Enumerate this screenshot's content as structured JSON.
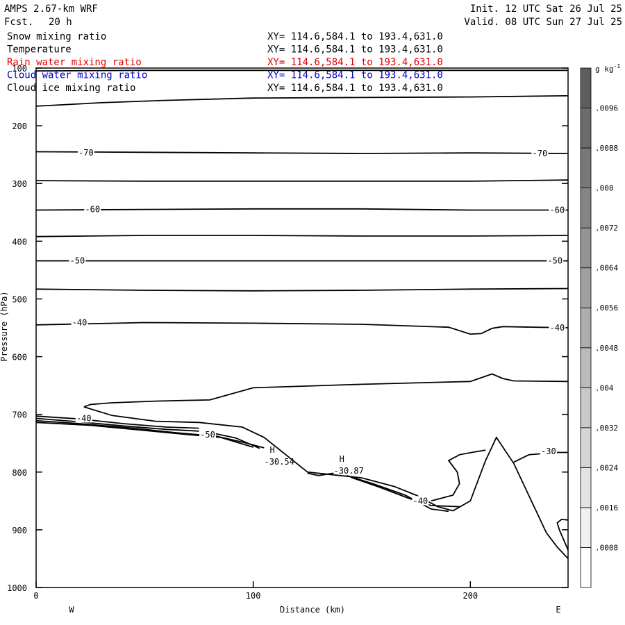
{
  "header": {
    "model": "AMPS 2.67-km WRF",
    "init": "Init. 12 UTC Sat 26 Jul 25",
    "fcst_label": "Fcst.",
    "fcst_value": "20 h",
    "valid": "Valid. 08 UTC Sun 27 Jul 25"
  },
  "fields": [
    {
      "name": "Snow mixing ratio",
      "xy": "XY= 114.6,584.1 to 193.4,631.0",
      "color": "#000000"
    },
    {
      "name": "Temperature",
      "xy": "XY= 114.6,584.1 to 193.4,631.0",
      "color": "#000000"
    },
    {
      "name": "Rain water mixing ratio",
      "xy": "XY= 114.6,584.1 to 193.4,631.0",
      "color": "#e00000"
    },
    {
      "name": "Cloud water mixing ratio",
      "xy": "XY= 114.6,584.1 to 193.4,631.0",
      "color": "#0000cc"
    },
    {
      "name": "Cloud ice mixing ratio",
      "xy": "XY= 114.6,584.1 to 193.4,631.0",
      "color": "#000000"
    }
  ],
  "chart_data": {
    "type": "line",
    "subtype": "vertical cross-section contour",
    "xlabel": "Distance (km)",
    "ylabel": "Pressure (hPa)",
    "xlim": [
      0,
      245
    ],
    "ylim": [
      1000,
      100
    ],
    "x_ticks": [
      0,
      100,
      200
    ],
    "y_ticks": [
      100,
      200,
      300,
      400,
      500,
      600,
      700,
      800,
      900,
      1000
    ],
    "x_end_labels": {
      "left": "W",
      "right": "E"
    },
    "colorbar": {
      "unit": "g kg",
      "unit_exp": "-1",
      "levels": [
        ".0008",
        ".0016",
        ".0024",
        ".0032",
        ".004",
        ".0048",
        ".0056",
        ".0064",
        ".0072",
        ".008",
        ".0088",
        ".0096"
      ],
      "colors": [
        "#ffffff",
        "#f0f0f0",
        "#e3e3e3",
        "#d5d5d5",
        "#c8c8c8",
        "#bbbbbb",
        "#adadad",
        "#a0a0a0",
        "#939393",
        "#858585",
        "#787878",
        "#6b6b6b",
        "#5e5e5e"
      ]
    },
    "contours": [
      {
        "name": "c1",
        "points": [
          [
            0,
            105
          ],
          [
            50,
            104
          ],
          [
            100,
            104
          ],
          [
            150,
            104
          ],
          [
            200,
            104
          ],
          [
            245,
            104
          ]
        ]
      },
      {
        "name": "c2",
        "points": [
          [
            0,
            166
          ],
          [
            30,
            160
          ],
          [
            60,
            156
          ],
          [
            100,
            152
          ],
          [
            150,
            151
          ],
          [
            200,
            150
          ],
          [
            245,
            148
          ]
        ]
      },
      {
        "name": "c3",
        "points": [
          [
            0,
            245
          ],
          [
            50,
            246
          ],
          [
            100,
            247
          ],
          [
            150,
            248
          ],
          [
            200,
            247
          ],
          [
            245,
            248
          ]
        ]
      },
      {
        "name": "c4",
        "points": [
          [
            0,
            295
          ],
          [
            50,
            296
          ],
          [
            100,
            296
          ],
          [
            150,
            296
          ],
          [
            200,
            296
          ],
          [
            245,
            294
          ]
        ]
      },
      {
        "name": "c5",
        "points": [
          [
            0,
            346
          ],
          [
            50,
            345
          ],
          [
            100,
            344
          ],
          [
            150,
            344
          ],
          [
            200,
            346
          ],
          [
            245,
            346
          ]
        ]
      },
      {
        "name": "c6",
        "points": [
          [
            0,
            392
          ],
          [
            50,
            390
          ],
          [
            100,
            390
          ],
          [
            150,
            391
          ],
          [
            200,
            391
          ],
          [
            245,
            390
          ]
        ]
      },
      {
        "name": "c7",
        "points": [
          [
            0,
            434
          ],
          [
            50,
            434
          ],
          [
            100,
            434
          ],
          [
            150,
            434
          ],
          [
            200,
            434
          ],
          [
            245,
            434
          ]
        ]
      },
      {
        "name": "c8",
        "points": [
          [
            0,
            483
          ],
          [
            50,
            485
          ],
          [
            100,
            486
          ],
          [
            150,
            485
          ],
          [
            200,
            483
          ],
          [
            245,
            482
          ]
        ]
      },
      {
        "name": "c9",
        "points": [
          [
            0,
            545
          ],
          [
            50,
            541
          ],
          [
            100,
            542
          ],
          [
            150,
            544
          ],
          [
            190,
            549
          ],
          [
            200,
            561
          ],
          [
            205,
            560
          ],
          [
            210,
            551
          ],
          [
            215,
            548
          ],
          [
            230,
            549
          ],
          [
            245,
            550
          ]
        ]
      },
      {
        "name": "c10",
        "points": [
          [
            22,
            687
          ],
          [
            25,
            683
          ],
          [
            35,
            680
          ],
          [
            55,
            677
          ],
          [
            80,
            675
          ],
          [
            100,
            654
          ],
          [
            150,
            648
          ],
          [
            200,
            643
          ],
          [
            210,
            630
          ],
          [
            215,
            638
          ],
          [
            220,
            642
          ],
          [
            245,
            643
          ]
        ]
      },
      {
        "name": "c11",
        "points": [
          [
            22,
            687
          ],
          [
            35,
            702
          ],
          [
            55,
            712
          ],
          [
            75,
            714
          ],
          [
            95,
            722
          ],
          [
            105,
            740
          ],
          [
            115,
            770
          ],
          [
            125,
            800
          ],
          [
            140,
            806
          ],
          [
            150,
            810
          ],
          [
            165,
            825
          ],
          [
            175,
            840
          ],
          [
            185,
            860
          ],
          [
            192,
            867
          ],
          [
            200,
            850
          ],
          [
            207,
            780
          ],
          [
            212,
            740
          ],
          [
            220,
            785
          ],
          [
            235,
            905
          ],
          [
            240,
            930
          ],
          [
            245,
            950
          ]
        ]
      },
      {
        "name": "c12",
        "points": [
          [
            0,
            703
          ],
          [
            20,
            708
          ],
          [
            40,
            716
          ],
          [
            60,
            722
          ],
          [
            75,
            724
          ]
        ]
      },
      {
        "name": "c13",
        "points": [
          [
            0,
            707
          ],
          [
            20,
            713
          ],
          [
            40,
            720
          ],
          [
            60,
            726
          ],
          [
            75,
            729
          ]
        ]
      },
      {
        "name": "c14",
        "points": [
          [
            0,
            711
          ],
          [
            20,
            716
          ],
          [
            45,
            724
          ],
          [
            65,
            732
          ],
          [
            83,
            738
          ],
          [
            95,
            748
          ],
          [
            105,
            758
          ]
        ]
      },
      {
        "name": "c15",
        "points": [
          [
            0,
            714
          ],
          [
            25,
            719
          ],
          [
            50,
            728
          ],
          [
            70,
            735
          ],
          [
            85,
            740
          ],
          [
            100,
            757
          ]
        ]
      },
      {
        "name": "c16",
        "points": [
          [
            82,
            733
          ],
          [
            92,
            741
          ],
          [
            103,
            759
          ]
        ]
      },
      {
        "name": "c17",
        "points": [
          [
            125,
            802
          ],
          [
            130,
            806
          ],
          [
            137,
            802
          ]
        ]
      },
      {
        "name": "c18",
        "points": [
          [
            143,
            806
          ],
          [
            155,
            820
          ],
          [
            170,
            840
          ],
          [
            182,
            864
          ],
          [
            190,
            868
          ]
        ]
      },
      {
        "name": "c19",
        "points": [
          [
            145,
            809
          ],
          [
            158,
            826
          ],
          [
            172,
            846
          ],
          [
            182,
            858
          ],
          [
            195,
            860
          ]
        ]
      },
      {
        "name": "c20",
        "points": [
          [
            182,
            850
          ],
          [
            192,
            840
          ],
          [
            195,
            820
          ],
          [
            194,
            800
          ],
          [
            190,
            780
          ],
          [
            195,
            770
          ],
          [
            202,
            765
          ],
          [
            207,
            762
          ]
        ]
      },
      {
        "name": "c21",
        "points": [
          [
            220,
            783
          ],
          [
            227,
            770
          ],
          [
            240,
            766
          ],
          [
            245,
            766
          ]
        ]
      },
      {
        "name": "c22",
        "points": [
          [
            245,
            935
          ],
          [
            241,
            900
          ],
          [
            240,
            888
          ],
          [
            242,
            882
          ],
          [
            245,
            883
          ]
        ]
      }
    ],
    "contour_labels": [
      {
        "text": "-70",
        "x": 23,
        "p": 247
      },
      {
        "text": "-70",
        "x": 232,
        "p": 248
      },
      {
        "text": "-60",
        "x": 26,
        "p": 345
      },
      {
        "text": "-60",
        "x": 240,
        "p": 346
      },
      {
        "text": "-50",
        "x": 19,
        "p": 434
      },
      {
        "text": "-50",
        "x": 239,
        "p": 434
      },
      {
        "text": "-40",
        "x": 20,
        "p": 541
      },
      {
        "text": "-40",
        "x": 240,
        "p": 550
      },
      {
        "text": "-40",
        "x": 22,
        "p": 707
      },
      {
        "text": "-50",
        "x": 79,
        "p": 735
      },
      {
        "text": "-40",
        "x": 177,
        "p": 850
      },
      {
        "text": "-30",
        "x": 236,
        "p": 764
      }
    ],
    "highs": [
      {
        "symbol": "H",
        "value": "-30.54",
        "x": 112
      },
      {
        "symbol": "H",
        "value": "-30.87",
        "x": 144
      }
    ]
  }
}
